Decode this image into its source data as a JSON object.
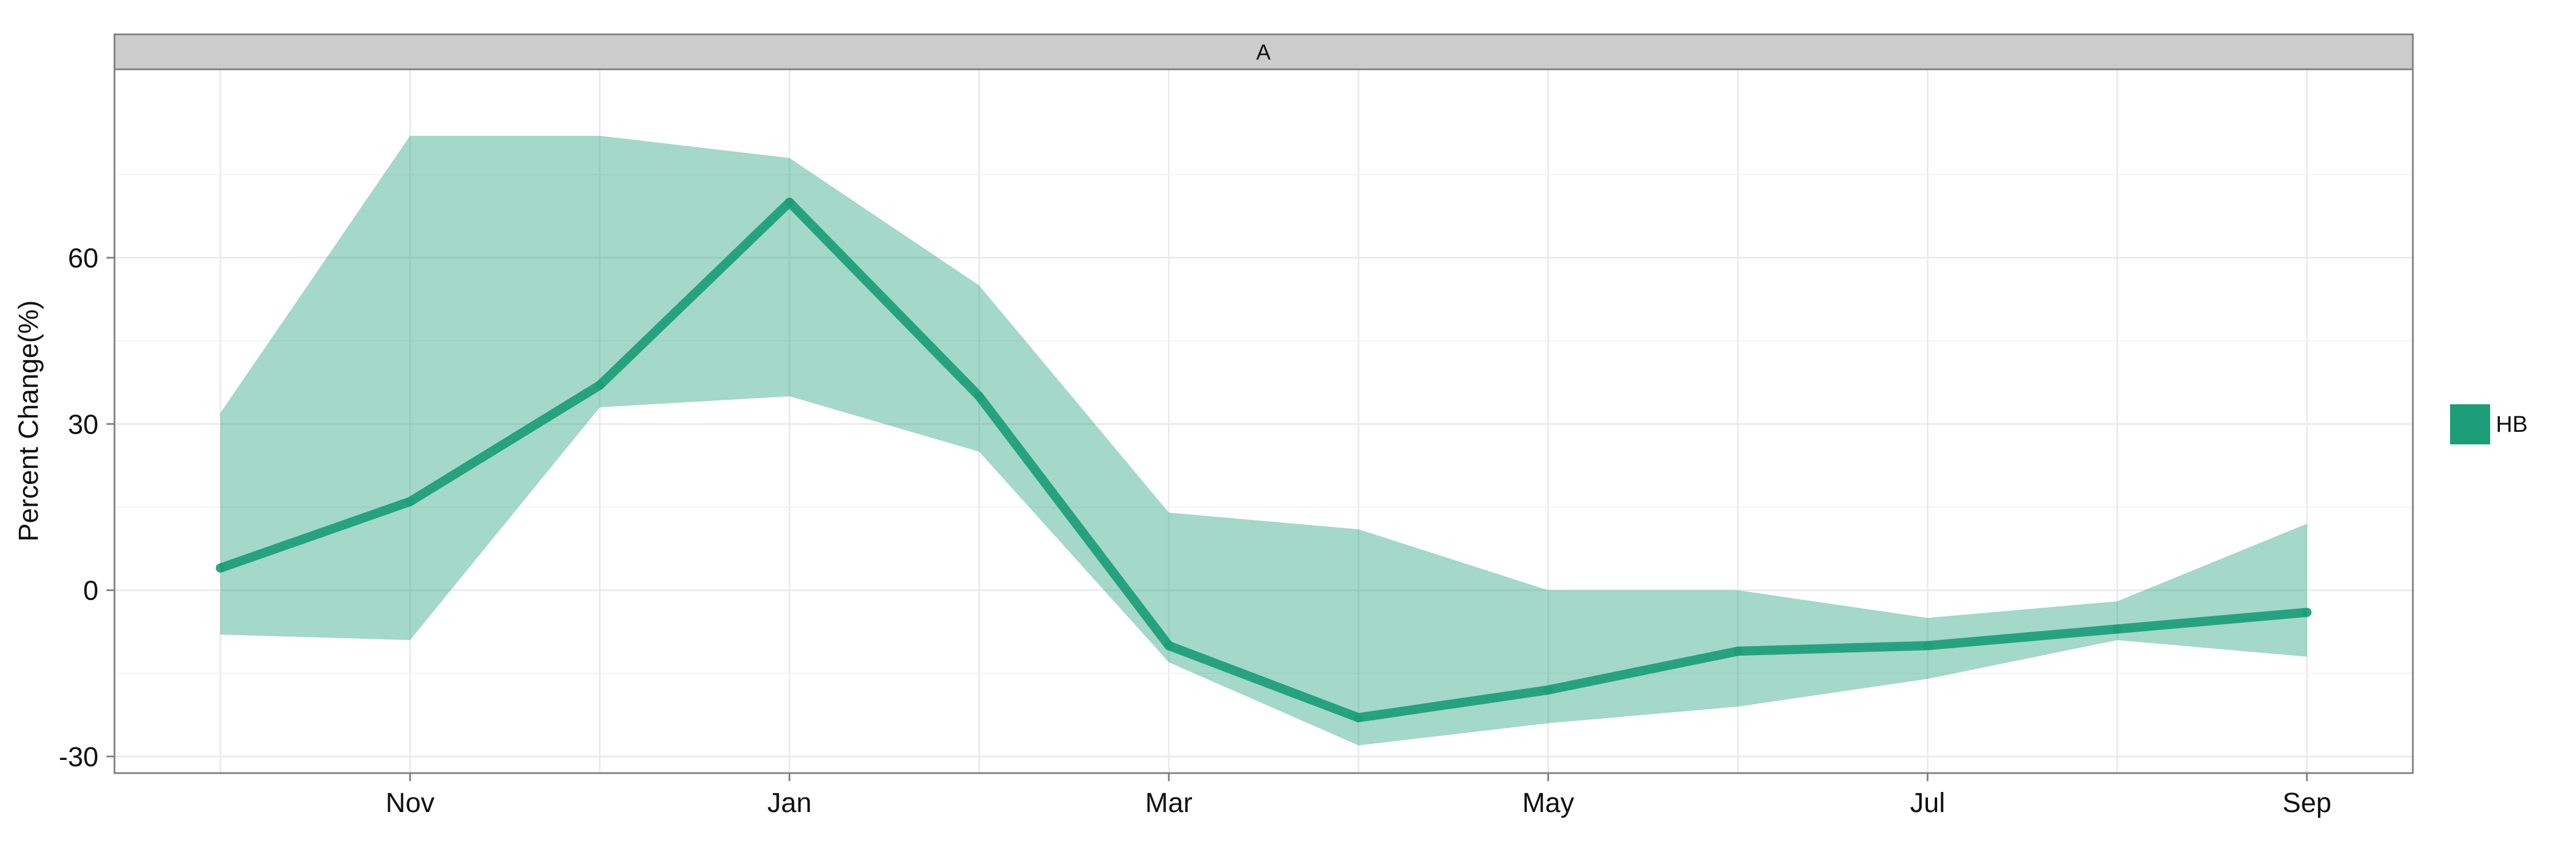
{
  "chart_data": {
    "type": "area",
    "panel_title": "A",
    "xlabel": "",
    "ylabel": "Percent Change(%)",
    "x": [
      "Oct",
      "Nov",
      "Dec",
      "Jan",
      "Feb",
      "Mar",
      "Apr",
      "May",
      "Jun",
      "Jul",
      "Aug",
      "Sep"
    ],
    "x_tick_labels": [
      "Nov",
      "Jan",
      "Mar",
      "May",
      "Jul",
      "Sep"
    ],
    "y_ticks": [
      -30,
      0,
      30,
      60
    ],
    "y_tick_labels": [
      "-30",
      "0",
      "30",
      "60"
    ],
    "ylim": [
      -33,
      94
    ],
    "grid": true,
    "legend_position": "right",
    "series": [
      {
        "name": "HB",
        "color": "#1b9e77",
        "values": [
          4,
          16,
          37,
          70,
          35,
          -10,
          -23,
          -18,
          -11,
          -10,
          -7,
          -4
        ],
        "lower": [
          -8,
          -9,
          33,
          35,
          25,
          -13,
          -28,
          -24,
          -21,
          -16,
          -9,
          -12
        ],
        "upper": [
          32,
          82,
          82,
          78,
          55,
          14,
          11,
          0,
          0,
          -5,
          -2,
          12
        ]
      }
    ]
  }
}
